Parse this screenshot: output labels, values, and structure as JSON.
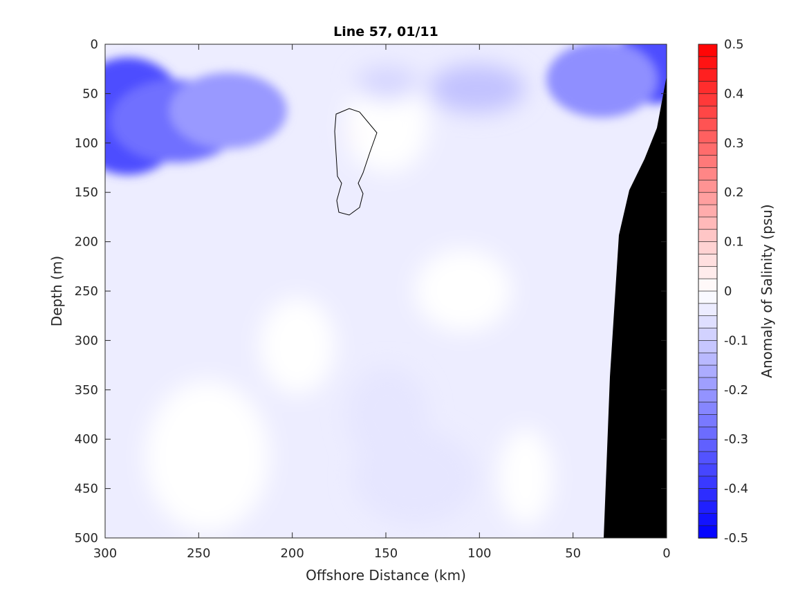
{
  "chart_data": {
    "type": "heatmap",
    "title": "Line 57, 01/11",
    "xlabel": "Offshore Distance (km)",
    "ylabel": "Depth (m)",
    "xlim": [
      300,
      0
    ],
    "ylim": [
      0,
      500
    ],
    "x_reversed": true,
    "y_reversed": true,
    "x_ticks": [
      "300",
      "250",
      "200",
      "150",
      "100",
      "50",
      "0"
    ],
    "y_ticks": [
      "0",
      "50",
      "100",
      "150",
      "200",
      "250",
      "300",
      "350",
      "400",
      "450",
      "500"
    ],
    "colorbar": {
      "label": "Anomaly of Salinity (psu)",
      "range": [
        -0.5,
        0.5
      ],
      "levels": 40,
      "ticks": [
        "0.5",
        "0.4",
        "0.3",
        "0.2",
        "0.1",
        "0",
        "-0.1",
        "-0.2",
        "-0.3",
        "-0.4",
        "-0.5"
      ],
      "colormap": "blue-white-red",
      "low_color": "#0000ff",
      "mid_color": "#ffffff",
      "high_color": "#ff0000"
    },
    "features": [
      {
        "value": -0.35,
        "x": 295,
        "y": 78
      },
      {
        "value": -0.28,
        "x": 260,
        "y": 80
      },
      {
        "value": -0.2,
        "x": 225,
        "y": 70
      },
      {
        "value": -0.35,
        "x": 5,
        "y": 18
      },
      {
        "value": -0.22,
        "x": 35,
        "y": 35
      },
      {
        "value": -0.12,
        "x": 100,
        "y": 40
      },
      {
        "value": -0.08,
        "x": 150,
        "y": 40
      },
      {
        "value": -0.05,
        "x": 120,
        "y": 480
      },
      {
        "value": -0.05,
        "x": 150,
        "y": 370
      },
      {
        "value": 0.0,
        "x": 165,
        "y": 110
      },
      {
        "value": 0.02,
        "x": 168,
        "y": 92
      }
    ],
    "bathymetry_color": "#000000"
  }
}
